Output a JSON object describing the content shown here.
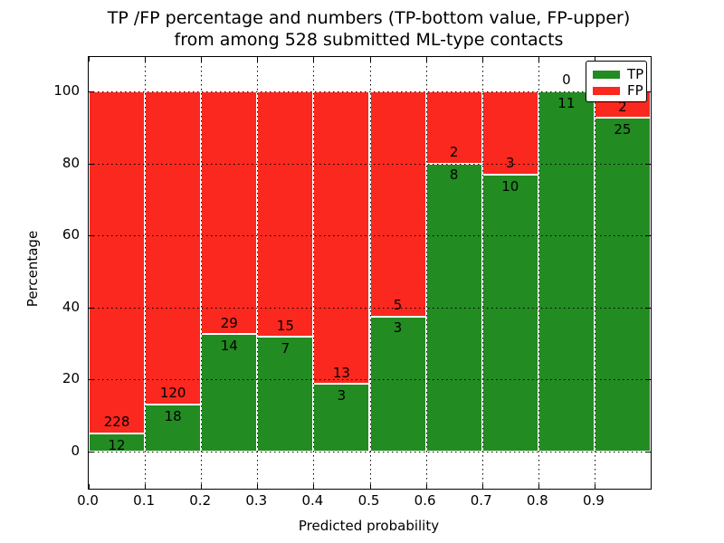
{
  "title": {
    "line1": "TP /FP percentage and numbers (TP-bottom value, FP-upper)",
    "line2": "from among 528 submitted ML-type contacts"
  },
  "chart_data": {
    "type": "bar",
    "stacked": true,
    "normalized_to_percent": true,
    "title": "TP /FP percentage and numbers (TP-bottom value, FP-upper) from among 528 submitted ML-type contacts",
    "xlabel": "Predicted probability",
    "ylabel": "Percentage",
    "bin_edges": [
      0.0,
      0.1,
      0.2,
      0.3,
      0.4,
      0.5,
      0.6,
      0.7,
      0.8,
      0.9,
      1.0
    ],
    "series": [
      {
        "name": "TP",
        "color": "#228b22",
        "counts": [
          12,
          18,
          14,
          7,
          3,
          3,
          8,
          10,
          11,
          25
        ]
      },
      {
        "name": "FP",
        "color": "#fa281e",
        "counts": [
          228,
          120,
          29,
          15,
          13,
          5,
          2,
          3,
          0,
          2
        ]
      }
    ],
    "tp_percentages": [
      5.0,
      13.04,
      32.56,
      31.82,
      18.75,
      37.5,
      80.0,
      76.92,
      100.0,
      92.59
    ],
    "total_contacts": 528,
    "xticks": [
      "0.0",
      "0.1",
      "0.2",
      "0.3",
      "0.4",
      "0.5",
      "0.6",
      "0.7",
      "0.8",
      "0.9"
    ],
    "yticks": [
      "0",
      "20",
      "40",
      "60",
      "80",
      "100"
    ],
    "ytick_values": [
      0,
      20,
      40,
      60,
      80,
      100
    ],
    "xlim": [
      0.0,
      1.0
    ],
    "ylim": [
      -10.9,
      109.8
    ],
    "grid": true,
    "grid_style": "dotted",
    "legend": {
      "position": "upper right",
      "entries": [
        {
          "label": "TP",
          "color": "#228b22"
        },
        {
          "label": "FP",
          "color": "#fa281e"
        }
      ]
    }
  }
}
